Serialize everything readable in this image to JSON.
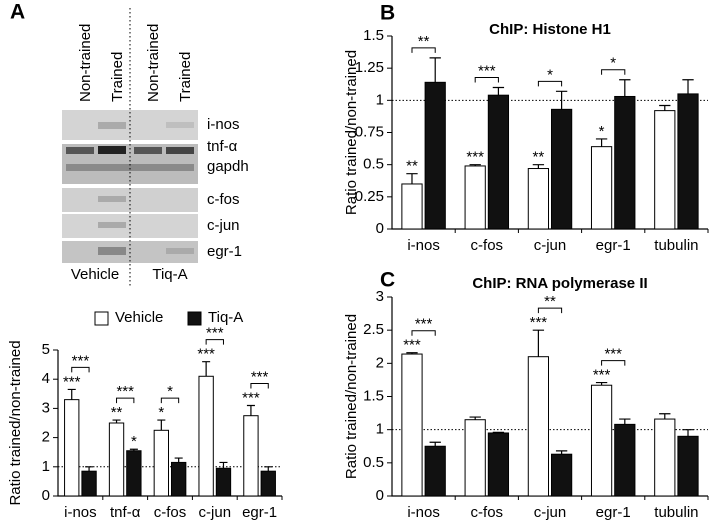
{
  "gel": {
    "lanes": [
      "Non-trained",
      "Trained",
      "Non-trained",
      "Trained"
    ],
    "rows": [
      "i-nos",
      "tnf-α",
      "gapdh",
      "c-fos",
      "c-jun",
      "egr-1"
    ],
    "groups": [
      "Vehicle",
      "Tiq-A"
    ]
  },
  "chart_data": [
    {
      "type": "bar",
      "panel": "A",
      "ylabel": "Ratio trained/non-trained",
      "categories": [
        "i-nos",
        "tnf-α",
        "c-fos",
        "c-jun",
        "egr-1"
      ],
      "ylim": [
        0,
        5
      ],
      "yticks": [
        0,
        1,
        2,
        3,
        4,
        5
      ],
      "reference_line": 1,
      "series": [
        {
          "name": "Vehicle",
          "color": "#ffffff",
          "values": [
            3.3,
            2.5,
            2.25,
            4.1,
            2.75
          ],
          "errors": [
            0.35,
            0.1,
            0.35,
            0.5,
            0.35
          ],
          "stars": [
            "***",
            "**",
            "*",
            "***",
            "***"
          ]
        },
        {
          "name": "Tiq-A",
          "color": "#111111",
          "values": [
            0.85,
            1.55,
            1.15,
            0.95,
            0.85
          ],
          "errors": [
            0.15,
            0.05,
            0.15,
            0.2,
            0.15
          ],
          "stars": [
            null,
            "*",
            null,
            null,
            null
          ]
        }
      ],
      "brackets": [
        "***",
        "***",
        "*",
        "***",
        "***"
      ]
    },
    {
      "type": "bar",
      "panel": "B",
      "title": "ChIP: Histone H1",
      "ylabel": "Ratio trained/non-trained",
      "categories": [
        "i-nos",
        "c-fos",
        "c-jun",
        "egr-1",
        "tubulin"
      ],
      "ylim": [
        0,
        1.5
      ],
      "yticks": [
        0,
        0.25,
        0.5,
        0.75,
        1,
        1.25,
        1.5
      ],
      "reference_line": 1,
      "series": [
        {
          "color": "#ffffff",
          "values": [
            0.35,
            0.49,
            0.47,
            0.64,
            0.92
          ],
          "errors": [
            0.08,
            0.01,
            0.03,
            0.06,
            0.04
          ],
          "stars": [
            "**",
            "***",
            "**",
            "*",
            null
          ]
        },
        {
          "color": "#111111",
          "values": [
            1.14,
            1.04,
            0.93,
            1.03,
            1.05
          ],
          "errors": [
            0.19,
            0.06,
            0.14,
            0.13,
            0.11
          ],
          "stars": [
            null,
            null,
            null,
            null,
            null
          ]
        }
      ],
      "brackets": [
        "**",
        "***",
        "*",
        "*",
        null
      ]
    },
    {
      "type": "bar",
      "panel": "C",
      "title": "ChIP: RNA polymerase II",
      "ylabel": "Ratio trained/non-trained",
      "categories": [
        "i-nos",
        "c-fos",
        "c-jun",
        "egr-1",
        "tubulin"
      ],
      "ylim": [
        0,
        3
      ],
      "yticks": [
        0,
        0.5,
        1,
        1.5,
        2,
        2.5,
        3
      ],
      "reference_line": 1,
      "series": [
        {
          "color": "#ffffff",
          "values": [
            2.14,
            1.15,
            2.1,
            1.67,
            1.16
          ],
          "errors": [
            0.02,
            0.04,
            0.4,
            0.04,
            0.08
          ],
          "stars": [
            "***",
            null,
            "***",
            "***",
            null
          ]
        },
        {
          "color": "#111111",
          "values": [
            0.75,
            0.95,
            0.63,
            1.08,
            0.9
          ],
          "errors": [
            0.06,
            0.01,
            0.05,
            0.08,
            0.1
          ],
          "stars": [
            null,
            null,
            null,
            null,
            null
          ]
        }
      ],
      "brackets": [
        "***",
        null,
        "**",
        "***",
        null
      ]
    }
  ]
}
